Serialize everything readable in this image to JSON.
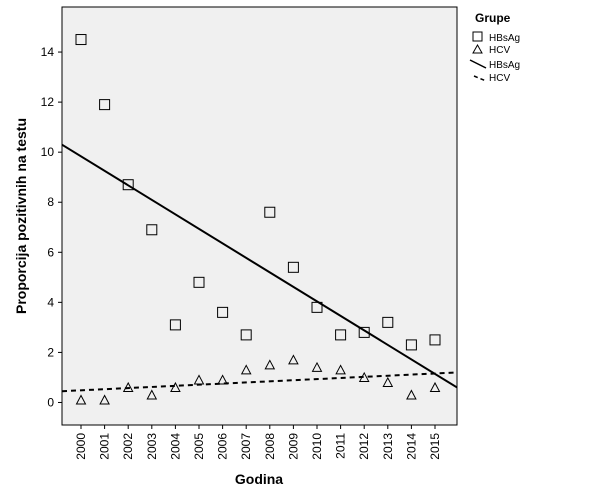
{
  "chart_data": {
    "type": "scatter",
    "title": "",
    "xlabel": "Godina",
    "ylabel": "Proporcija pozitivnih na testu",
    "categories": [
      "2000",
      "2001",
      "2002",
      "2003",
      "2004",
      "2005",
      "2006",
      "2007",
      "2008",
      "2009",
      "2010",
      "2011",
      "2012",
      "2013",
      "2014",
      "2015"
    ],
    "ylim": [
      -0.9,
      15.8
    ],
    "yticks": [
      0,
      2,
      4,
      6,
      8,
      10,
      12,
      14
    ],
    "grid": false,
    "background": "#f0f0f0",
    "legend": {
      "title": "Grupe",
      "position": "top-right",
      "entries": [
        {
          "label": "HBsAg",
          "kind": "square-marker"
        },
        {
          "label": "HCV",
          "kind": "triangle-marker"
        },
        {
          "label": "HBsAg",
          "kind": "solid-line"
        },
        {
          "label": "HCV",
          "kind": "dashed-line"
        }
      ]
    },
    "series": [
      {
        "name": "HBsAg",
        "marker": "square",
        "values": [
          14.5,
          11.9,
          8.7,
          6.9,
          3.1,
          4.8,
          3.6,
          2.7,
          7.6,
          5.4,
          3.8,
          2.7,
          2.8,
          3.2,
          2.3,
          2.5
        ]
      },
      {
        "name": "HCV",
        "marker": "triangle",
        "values": [
          0.1,
          0.1,
          0.6,
          0.3,
          0.6,
          0.9,
          0.9,
          1.3,
          1.5,
          1.7,
          1.4,
          1.3,
          1.0,
          0.8,
          0.3,
          0.6
        ]
      }
    ],
    "fit_lines": [
      {
        "name": "HBsAg",
        "style": "solid",
        "start": 10.3,
        "end": 0.6
      },
      {
        "name": "HCV",
        "style": "dashed",
        "start": 0.45,
        "end": 1.2
      }
    ]
  }
}
